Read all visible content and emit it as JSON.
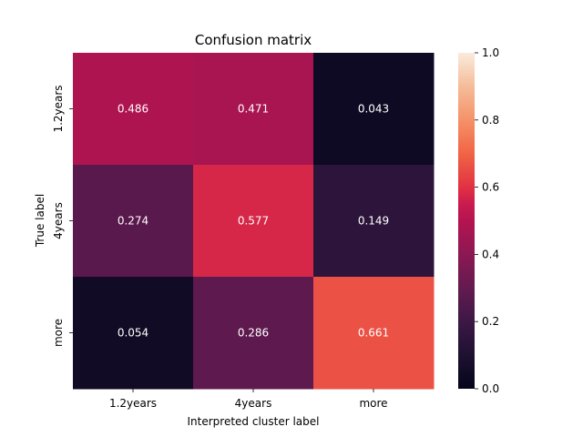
{
  "chart_data": {
    "type": "heatmap",
    "title": "Confusion matrix",
    "xlabel": "Interpreted cluster label",
    "ylabel": "True label",
    "x_categories": [
      "1.2years",
      "4years",
      "more"
    ],
    "y_categories": [
      "1.2years",
      "4years",
      "more"
    ],
    "values": [
      [
        0.486,
        0.471,
        0.043
      ],
      [
        0.274,
        0.577,
        0.149
      ],
      [
        0.054,
        0.286,
        0.661
      ]
    ],
    "value_labels": [
      [
        "0.486",
        "0.471",
        "0.043"
      ],
      [
        "0.274",
        "0.577",
        "0.149"
      ],
      [
        "0.054",
        "0.286",
        "0.661"
      ]
    ],
    "colorbar": {
      "range": [
        0.0,
        1.0
      ],
      "ticks": [
        0.0,
        0.2,
        0.4,
        0.6,
        0.8,
        1.0
      ],
      "tick_labels": [
        "0.0",
        "0.2",
        "0.4",
        "0.6",
        "0.8",
        "1.0"
      ],
      "colormap": "rocket"
    }
  }
}
